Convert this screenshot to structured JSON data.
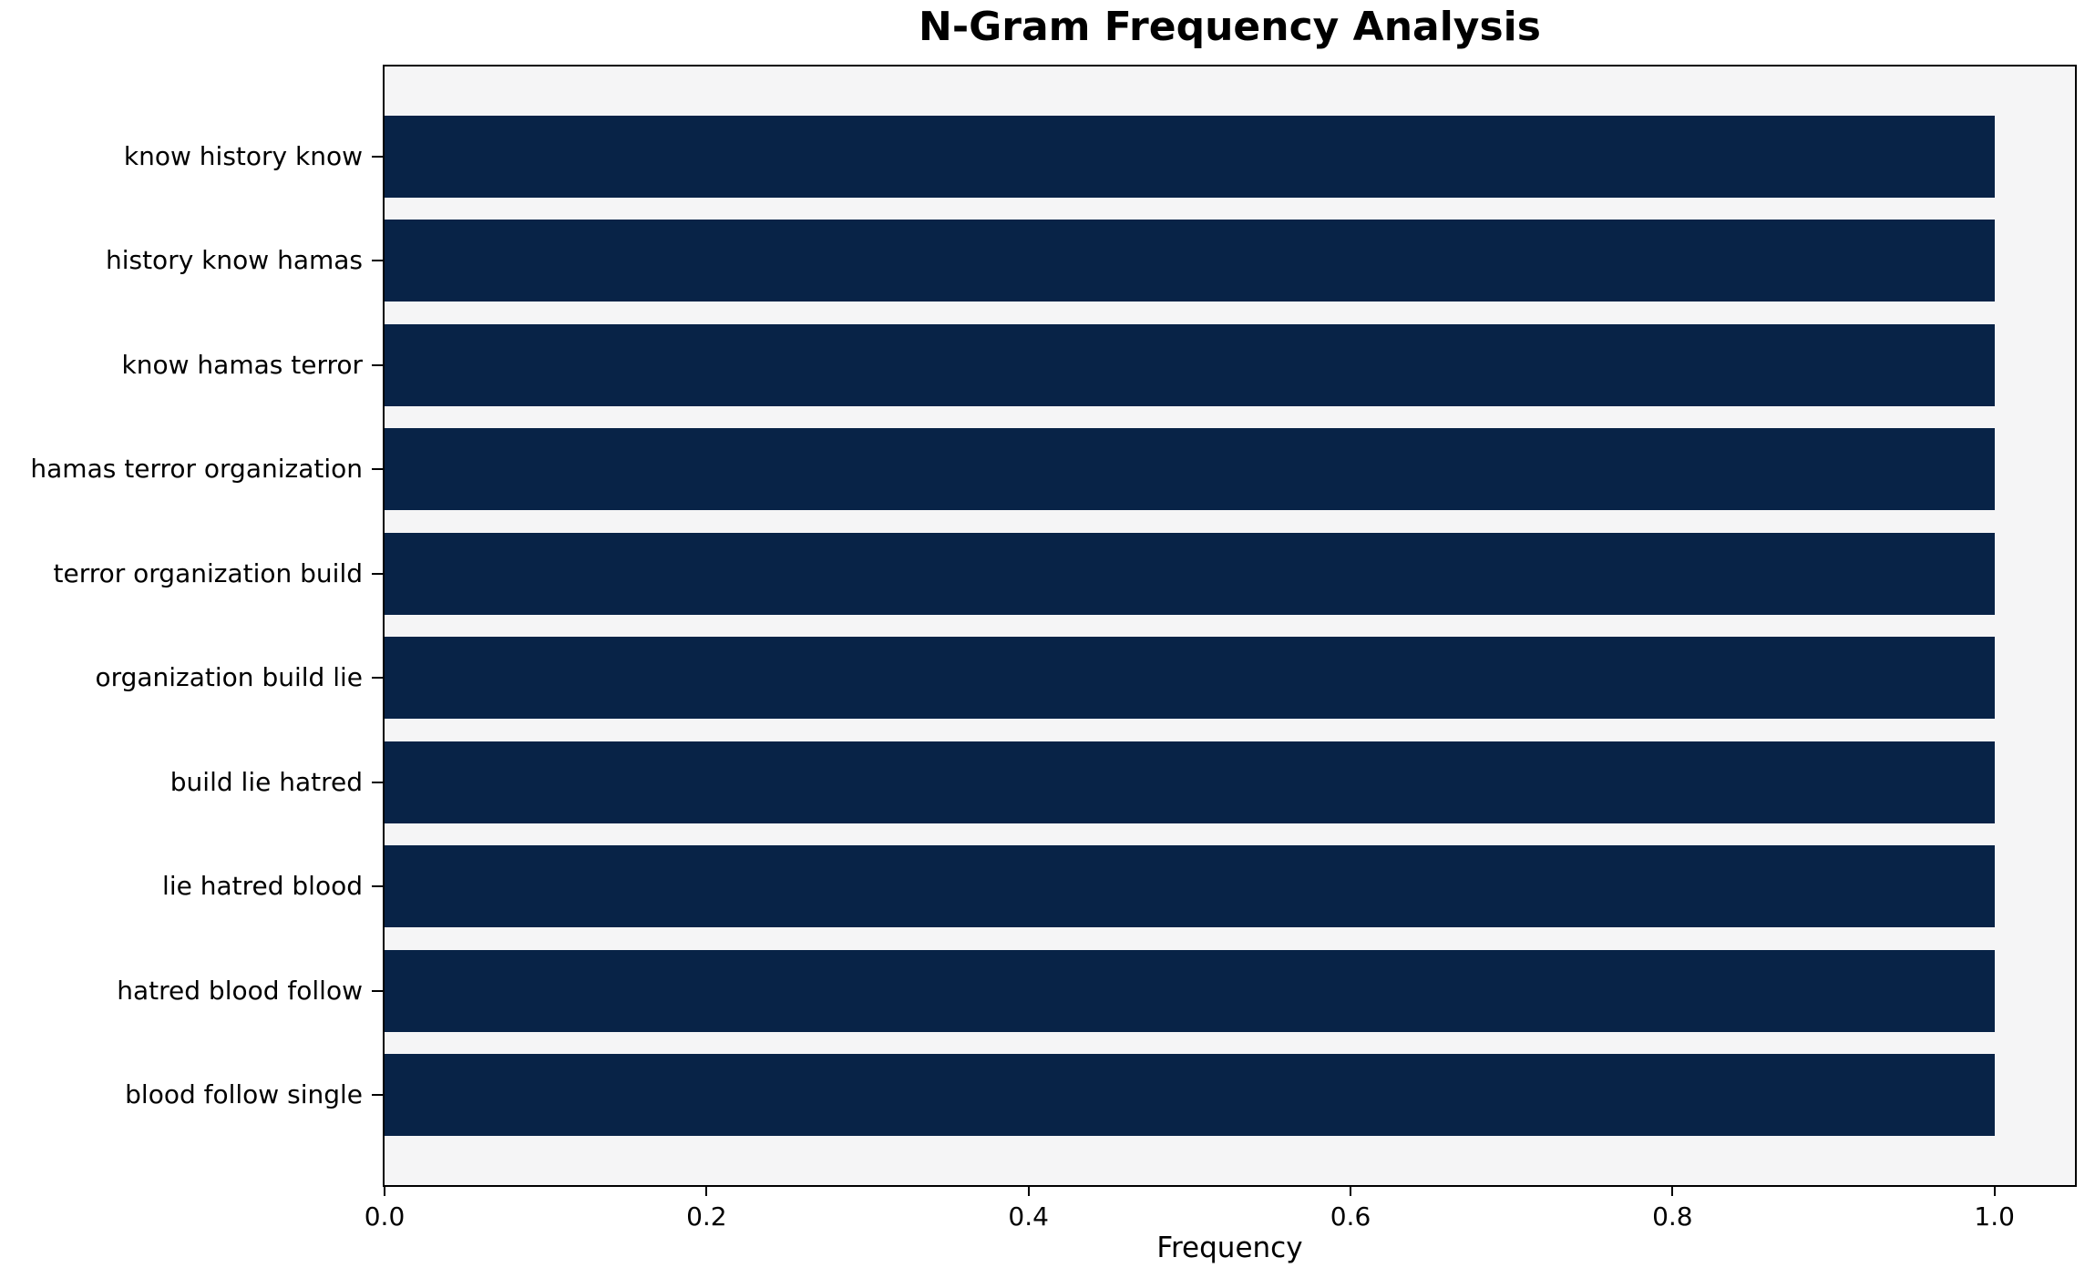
{
  "chart_data": {
    "type": "bar",
    "orientation": "horizontal",
    "title": "N-Gram Frequency Analysis",
    "xlabel": "Frequency",
    "ylabel": "",
    "categories": [
      "know history know",
      "history know hamas",
      "know hamas terror",
      "hamas terror organization",
      "terror organization build",
      "organization build lie",
      "build lie hatred",
      "lie hatred blood",
      "hatred blood follow",
      "blood follow single"
    ],
    "values": [
      1.0,
      1.0,
      1.0,
      1.0,
      1.0,
      1.0,
      1.0,
      1.0,
      1.0,
      1.0
    ],
    "x_ticks": [
      0.0,
      0.2,
      0.4,
      0.6,
      0.8,
      1.0
    ],
    "x_tick_labels": [
      "0.0",
      "0.2",
      "0.4",
      "0.6",
      "0.8",
      "1.0"
    ],
    "xlim": [
      0,
      1.05
    ],
    "grid": false,
    "legend": null,
    "bar_color": "#082347",
    "plot_background": "#f5f5f6",
    "figure_background": "#ffffff",
    "spine_color": "#000000"
  }
}
